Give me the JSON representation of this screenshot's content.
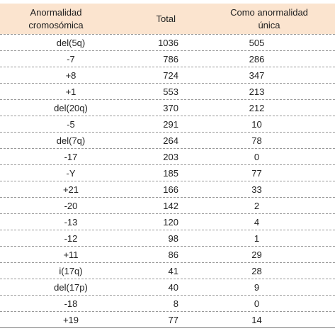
{
  "table": {
    "header": [
      "Anormalidad cromosómica",
      "Total",
      "Como anormalidad única"
    ],
    "rows": [
      [
        "del(5q)",
        1036,
        505
      ],
      [
        "-7",
        786,
        286
      ],
      [
        "+8",
        724,
        347
      ],
      [
        "+1",
        553,
        213
      ],
      [
        "del(20q)",
        370,
        212
      ],
      [
        "-5",
        291,
        10
      ],
      [
        "del(7q)",
        264,
        78
      ],
      [
        "-17",
        203,
        0
      ],
      [
        "-Y",
        185,
        77
      ],
      [
        "+21",
        166,
        33
      ],
      [
        "-20",
        142,
        2
      ],
      [
        "-13",
        120,
        4
      ],
      [
        "-12",
        98,
        1
      ],
      [
        "+11",
        86,
        29
      ],
      [
        "i(17q)",
        41,
        28
      ],
      [
        "del(17p)",
        40,
        9
      ],
      [
        "-18",
        8,
        0
      ],
      [
        "+19",
        77,
        14
      ]
    ]
  }
}
